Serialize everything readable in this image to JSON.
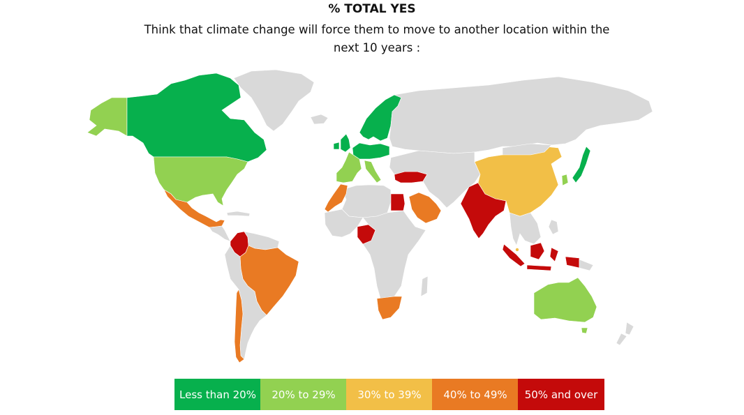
{
  "header": {
    "title": "% TOTAL YES",
    "subtitle": "Think that climate change will force them to move to another location within the next 10 years :"
  },
  "legend": [
    {
      "label": "Less than 20%",
      "color": "#07b04d"
    },
    {
      "label": "20% to 29%",
      "color": "#92d151"
    },
    {
      "label": "30% to 39%",
      "color": "#f2bf47"
    },
    {
      "label": "40% to 49%",
      "color": "#e97a23"
    },
    {
      "label": "50% and over",
      "color": "#c40a0a"
    }
  ],
  "colors": {
    "no_data": "#d9d9d9"
  },
  "regions": [
    {
      "id": "greenland",
      "group": "none"
    },
    {
      "id": "alaska",
      "group": "20-29"
    },
    {
      "id": "canada",
      "group": "lt20"
    },
    {
      "id": "usa",
      "group": "20-29"
    },
    {
      "id": "mexico",
      "group": "40-49"
    },
    {
      "id": "central-america",
      "group": "none"
    },
    {
      "id": "colombia",
      "group": "50plus"
    },
    {
      "id": "venezuela-guianas",
      "group": "none"
    },
    {
      "id": "brazil",
      "group": "40-49"
    },
    {
      "id": "peru-bolivia-argentina",
      "group": "none"
    },
    {
      "id": "chile",
      "group": "40-49"
    },
    {
      "id": "iceland",
      "group": "none"
    },
    {
      "id": "uk-ireland",
      "group": "lt20"
    },
    {
      "id": "scandinavia",
      "group": "lt20"
    },
    {
      "id": "central-europe",
      "group": "lt20"
    },
    {
      "id": "france-spain",
      "group": "20-29"
    },
    {
      "id": "italy",
      "group": "20-29"
    },
    {
      "id": "turkey",
      "group": "50plus"
    },
    {
      "id": "russia",
      "group": "none"
    },
    {
      "id": "north-africa",
      "group": "none"
    },
    {
      "id": "morocco",
      "group": "40-49"
    },
    {
      "id": "egypt",
      "group": "50plus"
    },
    {
      "id": "west-africa",
      "group": "none"
    },
    {
      "id": "nigeria",
      "group": "50plus"
    },
    {
      "id": "central-east-africa",
      "group": "none"
    },
    {
      "id": "south-africa",
      "group": "40-49"
    },
    {
      "id": "madagascar",
      "group": "none"
    },
    {
      "id": "saudi-arabia",
      "group": "40-49"
    },
    {
      "id": "middle-east-central-asia",
      "group": "none"
    },
    {
      "id": "india",
      "group": "50plus"
    },
    {
      "id": "china",
      "group": "30-39"
    },
    {
      "id": "mongolia",
      "group": "none"
    },
    {
      "id": "southeast-asia",
      "group": "none"
    },
    {
      "id": "south-korea",
      "group": "20-29"
    },
    {
      "id": "japan",
      "group": "lt20"
    },
    {
      "id": "indonesia",
      "group": "50plus"
    },
    {
      "id": "singapore",
      "group": "30-39"
    },
    {
      "id": "australia",
      "group": "20-29"
    },
    {
      "id": "new-zealand",
      "group": "none"
    }
  ]
}
